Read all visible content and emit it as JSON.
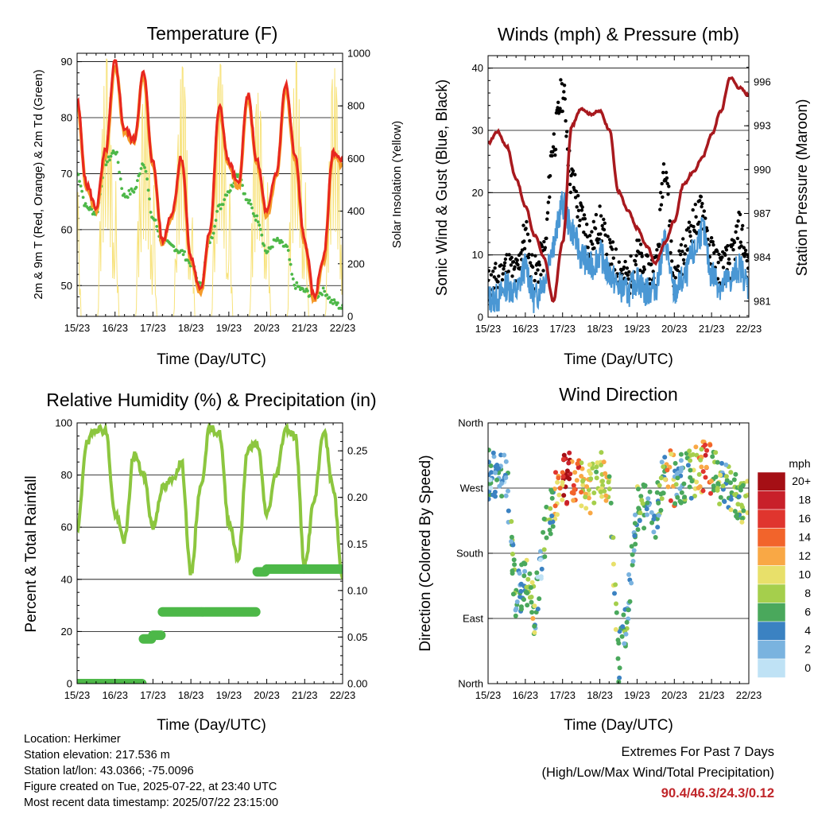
{
  "panels": {
    "temperature": {
      "title": "Temperature (F)",
      "ylabel_left": "2m & 9m T (Red, Orange) & 2m Td (Green)",
      "ylabel_right": "Solar Insolation (Yellow)",
      "xlabel": "Time (Day/UTC)"
    },
    "winds": {
      "title": "Winds (mph) & Pressure (mb)",
      "ylabel_left": "Sonic Wind & Gust (Blue, Black)",
      "ylabel_right": "Station Pressure (Maroon)",
      "xlabel": "Time (Day/UTC)"
    },
    "humidity": {
      "title": "Relative Humidity (%) & Precipitation (in)",
      "ylabel_left": "Percent & Total Rainfall",
      "xlabel": "Time (Day/UTC)"
    },
    "direction": {
      "title": "Wind Direction",
      "ylabel_left": "Direction (Colored By Speed)",
      "xlabel": "Time (Day/UTC)",
      "colorbar_title": "mph"
    }
  },
  "info": {
    "location": "Location: Herkimer",
    "elevation": "Station elevation: 217.536 m",
    "latlon": "Station lat/lon: 43.0366; -75.0096",
    "created": "Figure created on Tue, 2025-07-22, at 23:40 UTC",
    "recent": "Most recent data timestamp: 2025/07/22 23:15:00"
  },
  "extremes": {
    "heading": "Extremes For Past 7 Days",
    "subheading": "(High/Low/Max Wind/Total Precipitation)",
    "values": "90.4/46.3/24.3/0.12"
  },
  "colors": {
    "temp_2m": "#e8271f",
    "temp_9m": "#f59b2a",
    "dewpoint": "#4db848",
    "solar": "#f7e27a",
    "wind": "#4a97d4",
    "gust": "#000000",
    "pressure": "#a8191e",
    "rh": "#8cc63f",
    "rain": "#4db848"
  },
  "chart_data": [
    {
      "type": "line",
      "title": "Temperature (F)",
      "xlabel": "Time (Day/UTC)",
      "ylabel": "2m & 9m T (Red, Orange) & 2m Td (Green)",
      "y2label": "Solar Insolation (Yellow)",
      "x_ticks": [
        "15/23",
        "16/23",
        "17/23",
        "18/23",
        "19/23",
        "20/23",
        "21/23",
        "22/23"
      ],
      "y_ticks": [
        50,
        60,
        70,
        80,
        90
      ],
      "y2_ticks": [
        0,
        200,
        400,
        600,
        800,
        1000
      ],
      "ylim": [
        44.5,
        91.5
      ],
      "y2lim": [
        0,
        1000
      ],
      "x": [
        0,
        0.25,
        0.5,
        0.75,
        1,
        1.25,
        1.5,
        1.75,
        2,
        2.25,
        2.5,
        2.75,
        3,
        3.25,
        3.5,
        3.75,
        4,
        4.25,
        4.5,
        4.75,
        5,
        5.25,
        5.5,
        5.75,
        6,
        6.25,
        6.5,
        6.75,
        7
      ],
      "series": [
        {
          "name": "2m T",
          "values": [
            83,
            68,
            64,
            74,
            90,
            78,
            76,
            88,
            72,
            58,
            63,
            73,
            55,
            49,
            60,
            82,
            72,
            68,
            84,
            72,
            63,
            70,
            86,
            73,
            58,
            48,
            55,
            74,
            72
          ]
        },
        {
          "name": "Td",
          "values": [
            70,
            64,
            63,
            72,
            74,
            66,
            67,
            72,
            62,
            58,
            57,
            56,
            54,
            50,
            58,
            64,
            67,
            70,
            65,
            62,
            56,
            58,
            57,
            50,
            49,
            48,
            49,
            47,
            46
          ]
        },
        {
          "name": "Solar",
          "values": [
            0,
            0,
            0,
            650,
            980,
            850,
            0,
            0,
            0,
            650,
            950,
            800,
            0,
            0,
            0,
            600,
            960,
            850,
            0,
            0,
            0,
            700,
            970,
            800,
            0,
            0,
            0,
            650,
            950
          ]
        }
      ]
    },
    {
      "type": "line",
      "title": "Winds (mph) & Pressure (mb)",
      "xlabel": "Time (Day/UTC)",
      "ylabel": "Sonic Wind & Gust (Blue, Black)",
      "y2label": "Station Pressure (Maroon)",
      "x_ticks": [
        "15/23",
        "16/23",
        "17/23",
        "18/23",
        "19/23",
        "20/23",
        "21/23",
        "22/23"
      ],
      "y_ticks": [
        0,
        10,
        20,
        30,
        40
      ],
      "y2_ticks": [
        981,
        984,
        987,
        990,
        993,
        996
      ],
      "ylim": [
        0,
        42
      ],
      "y2lim": [
        979.9,
        997.8
      ],
      "x": [
        0,
        0.25,
        0.5,
        0.75,
        1,
        1.25,
        1.5,
        1.75,
        2,
        2.25,
        2.5,
        2.75,
        3,
        3.25,
        3.5,
        3.75,
        4,
        4.25,
        4.5,
        4.75,
        5,
        5.25,
        5.5,
        5.75,
        6,
        6.25,
        6.5,
        6.75,
        7
      ],
      "series": [
        {
          "name": "Wind",
          "values": [
            3,
            3,
            5,
            4,
            8,
            3,
            6,
            12,
            18,
            14,
            10,
            8,
            10,
            7,
            5,
            4,
            6,
            4,
            5,
            12,
            4,
            6,
            10,
            14,
            7,
            5,
            6,
            8,
            5
          ]
        },
        {
          "name": "Gust",
          "values": [
            5,
            6,
            8,
            7,
            13,
            7,
            10,
            28,
            36,
            22,
            16,
            12,
            15,
            10,
            8,
            6,
            10,
            7,
            8,
            25,
            6,
            10,
            15,
            17,
            10,
            8,
            9,
            14,
            8
          ]
        },
        {
          "name": "Pressure",
          "values": [
            991.8,
            992.6,
            991.6,
            989.4,
            987.5,
            985.5,
            984.0,
            981.0,
            985.0,
            993.0,
            994.2,
            993.8,
            994.0,
            992.8,
            988.5,
            987.2,
            986.0,
            984.8,
            983.6,
            985.0,
            986.5,
            989.0,
            989.8,
            990.8,
            992.4,
            994.0,
            996.3,
            995.6,
            995.1
          ]
        }
      ]
    },
    {
      "type": "line",
      "title": "Relative Humidity (%) & Precipitation (in)",
      "xlabel": "Time (Day/UTC)",
      "ylabel": "Percent & Total Rainfall",
      "x_ticks": [
        "15/23",
        "16/23",
        "17/23",
        "18/23",
        "19/23",
        "20/23",
        "21/23",
        "22/23"
      ],
      "y_ticks": [
        0,
        20,
        40,
        60,
        80,
        100
      ],
      "y2_ticks": [
        0.0,
        0.05,
        0.1,
        0.15,
        0.2,
        0.25
      ],
      "ylim": [
        0,
        100
      ],
      "y2lim": [
        0,
        0.28
      ],
      "x": [
        0,
        0.25,
        0.5,
        0.75,
        1,
        1.25,
        1.5,
        1.75,
        2,
        2.25,
        2.5,
        2.75,
        3,
        3.25,
        3.5,
        3.75,
        4,
        4.25,
        4.5,
        4.75,
        5,
        5.25,
        5.5,
        5.75,
        6,
        6.25,
        6.5,
        6.75,
        7
      ],
      "series": [
        {
          "name": "RH",
          "values": [
            58,
            92,
            98,
            97,
            65,
            55,
            88,
            80,
            60,
            75,
            78,
            85,
            42,
            75,
            98,
            96,
            62,
            48,
            90,
            92,
            65,
            80,
            98,
            95,
            45,
            70,
            97,
            75,
            40
          ]
        },
        {
          "name": "Precipitation",
          "values": [
            0,
            0,
            0,
            0,
            0,
            0,
            0,
            0.048,
            0.052,
            0.077,
            0.077,
            0.077,
            0.077,
            0.077,
            0.077,
            0.077,
            0.077,
            0.077,
            0.077,
            0.12,
            0.123,
            0.123,
            0.123,
            0.123,
            0.123,
            0.123,
            0.123,
            0.123,
            0.12
          ]
        }
      ]
    },
    {
      "type": "scatter",
      "title": "Wind Direction",
      "xlabel": "Time (Day/UTC)",
      "ylabel": "Direction (Colored By Speed)",
      "x_ticks": [
        "15/23",
        "16/23",
        "17/23",
        "18/23",
        "19/23",
        "20/23",
        "21/23",
        "22/23"
      ],
      "y_categories": [
        "North",
        "West",
        "South",
        "East",
        "North"
      ],
      "colorbar_title": "mph",
      "colorbar_labels": [
        "20+",
        "18",
        "16",
        "14",
        "12",
        "10",
        "8",
        "6",
        "4",
        "2",
        "0"
      ],
      "colorbar_colors": [
        "#a50f15",
        "#c8202a",
        "#e0352e",
        "#f2642b",
        "#f9a845",
        "#e8e06a",
        "#a5cf4c",
        "#4aa85c",
        "#3b82c2",
        "#7ab3df",
        "#bfe2f5"
      ],
      "x": [
        0,
        0.25,
        0.5,
        0.75,
        1,
        1.25,
        1.5,
        1.75,
        2,
        2.25,
        2.5,
        2.75,
        3,
        3.25,
        3.5,
        3.75,
        4,
        4.25,
        4.5,
        4.75,
        5,
        5.25,
        5.5,
        5.75,
        6,
        6.25,
        6.5,
        6.75,
        7
      ],
      "series": [
        {
          "name": "Direction",
          "values": [
            290,
            285,
            280,
            110,
            150,
            100,
            200,
            250,
            280,
            285,
            275,
            270,
            290,
            280,
            30,
            100,
            240,
            250,
            230,
            300,
            280,
            285,
            290,
            300,
            295,
            280,
            270,
            260,
            250
          ]
        }
      ]
    }
  ]
}
